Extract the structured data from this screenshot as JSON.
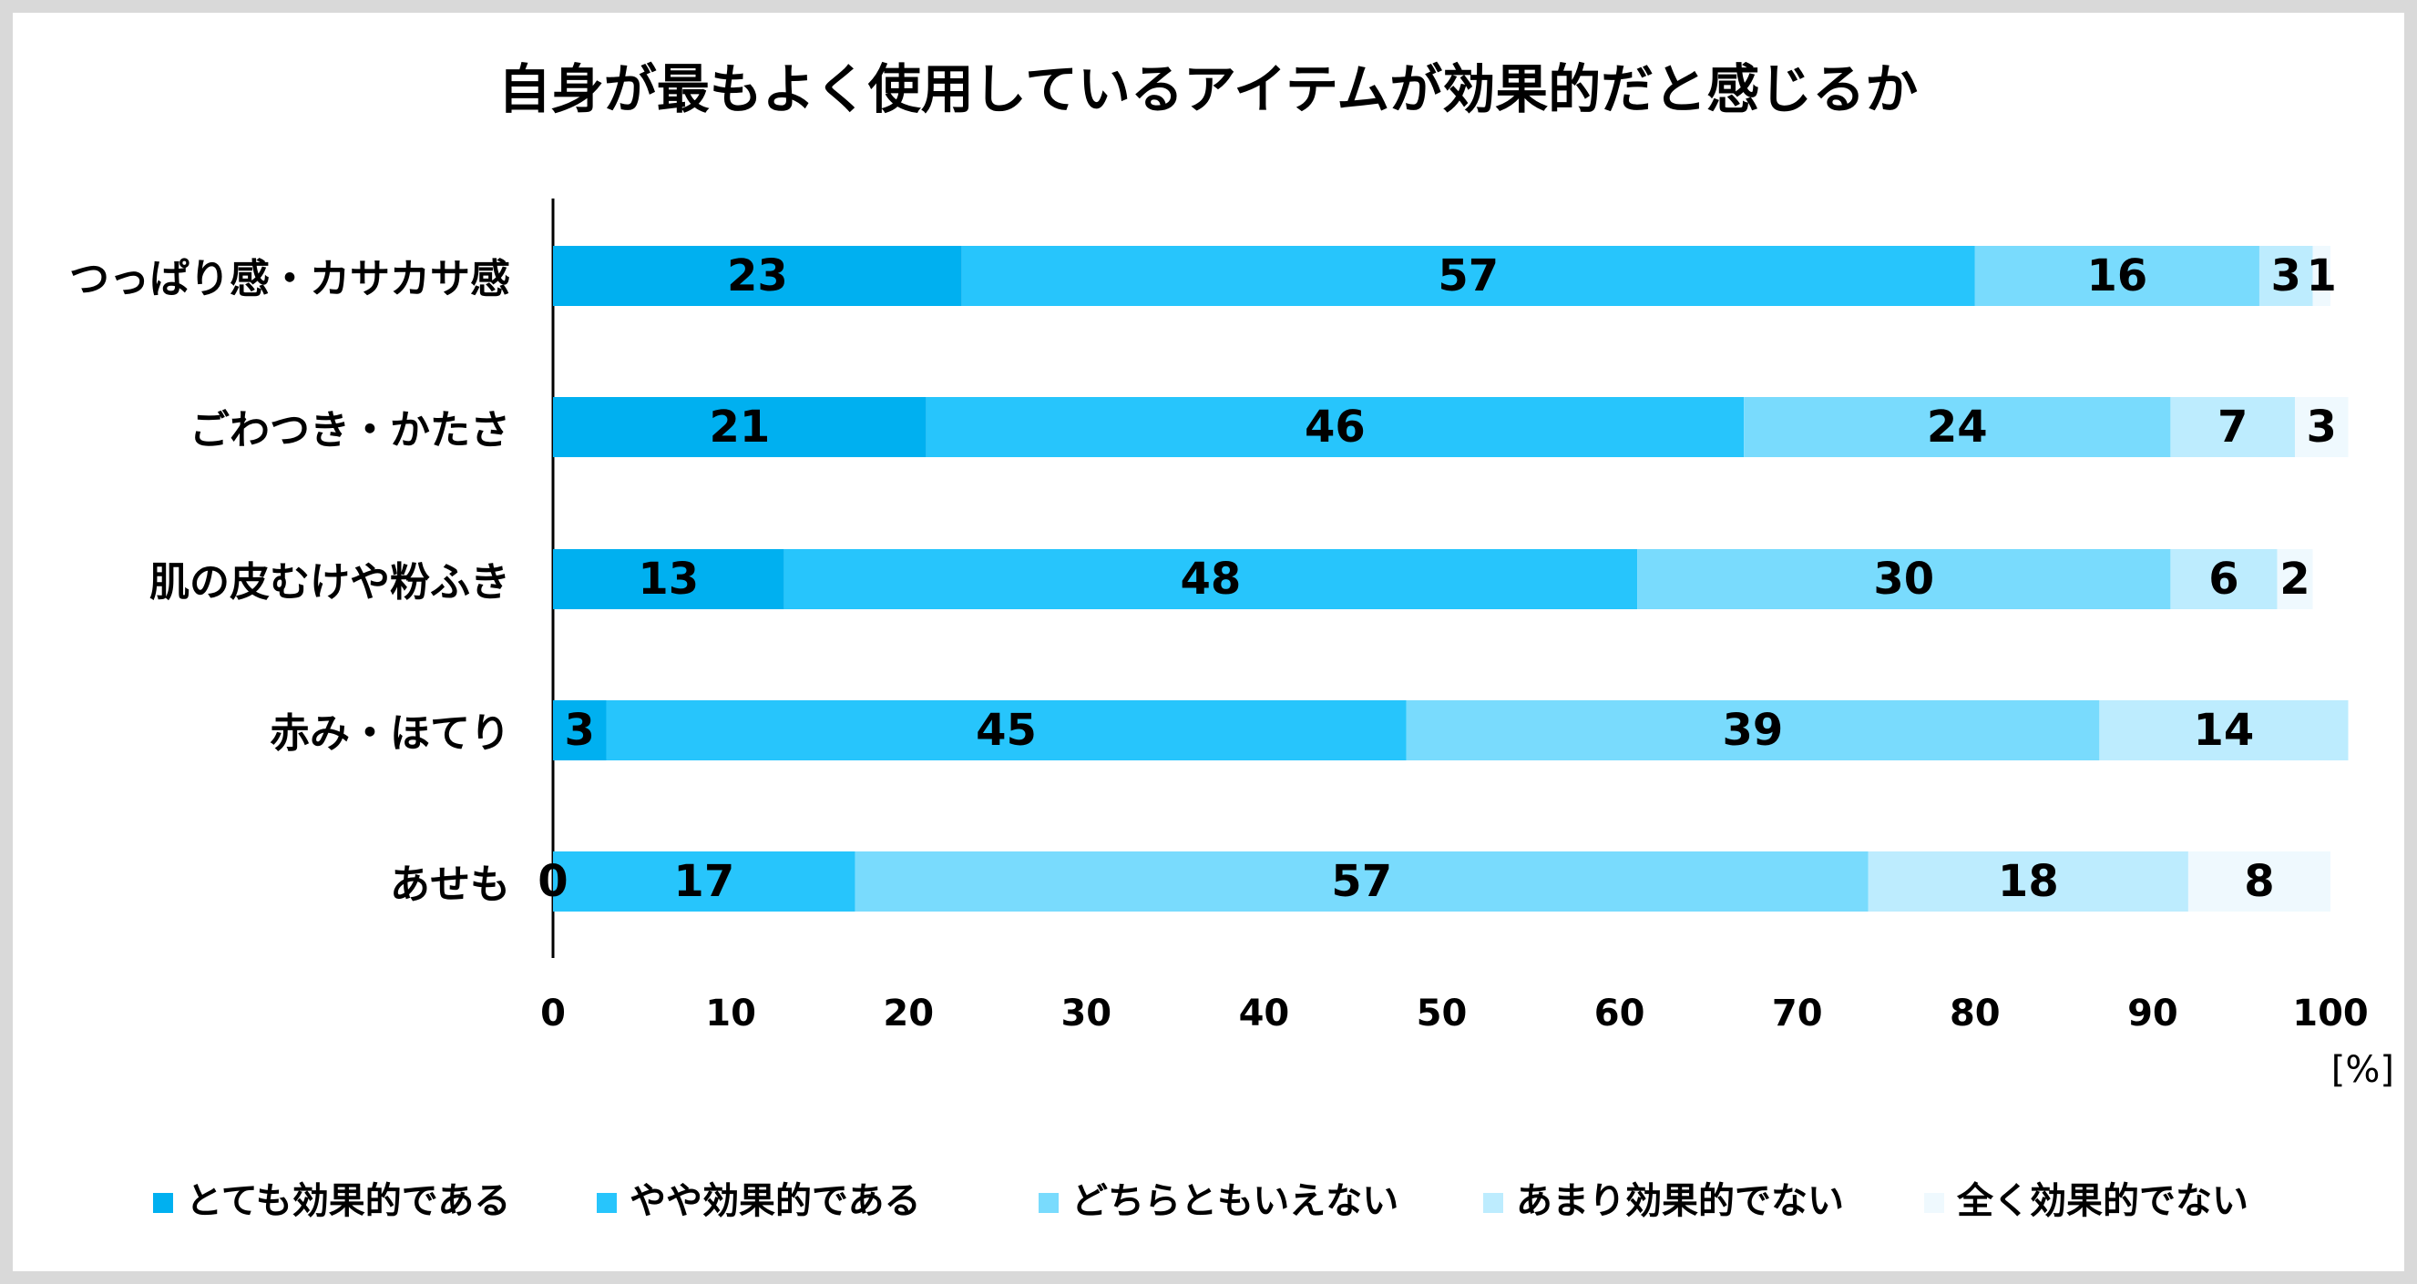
{
  "chart_data": {
    "type": "bar",
    "orientation": "horizontal",
    "stacked": true,
    "title": "自身が最もよく使用しているアイテムが効果的だと感じるか",
    "unit_label": "[%]",
    "xlim": [
      0,
      100
    ],
    "xticks": [
      "0",
      "10",
      "20",
      "30",
      "40",
      "50",
      "60",
      "70",
      "80",
      "90",
      "100"
    ],
    "grid": false,
    "legend_position": "bottom",
    "categories": [
      "つっぱり感・カサカサ感",
      "ごわつき・かたさ",
      "肌の皮むけや粉ふき",
      "赤み・ほてり",
      "あせも"
    ],
    "series": [
      {
        "name": "とても効果的である",
        "color": "#00b0f0",
        "values": [
          23,
          21,
          13,
          3,
          0
        ]
      },
      {
        "name": "やや効果的である",
        "color": "#27c5fc",
        "values": [
          57,
          46,
          48,
          45,
          17
        ]
      },
      {
        "name": "どちらともいえない",
        "color": "#79dbfd",
        "values": [
          16,
          24,
          30,
          39,
          57
        ]
      },
      {
        "name": "あまり効果的でない",
        "color": "#bdecfe",
        "values": [
          3,
          7,
          6,
          14,
          18
        ]
      },
      {
        "name": "全く効果的でない",
        "color": "#eff9fe",
        "values": [
          1,
          3,
          2,
          0,
          8
        ]
      }
    ],
    "data_labels": [
      [
        "23",
        "57",
        "16",
        "3",
        "1"
      ],
      [
        "21",
        "46",
        "24",
        "7",
        "3"
      ],
      [
        "13",
        "48",
        "30",
        "6",
        "2"
      ],
      [
        "3",
        "45",
        "39",
        "14",
        null
      ],
      [
        "0",
        "17",
        "57",
        "18",
        "8"
      ]
    ]
  }
}
